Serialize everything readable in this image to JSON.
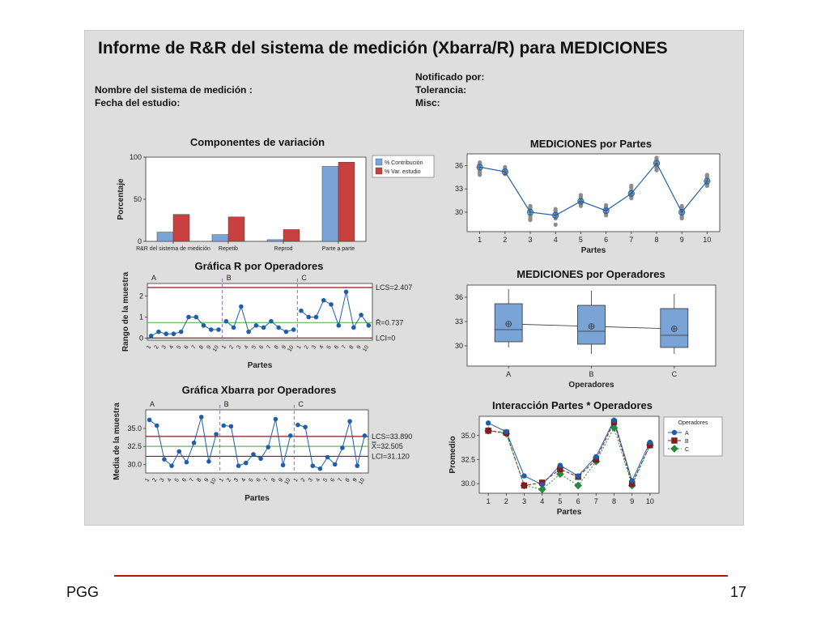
{
  "report": {
    "title": "Informe de R&R del sistema de medición  (Xbarra/R) para MEDICIONES",
    "system_label": "Nombre del sistema de medición :",
    "date_label": "Fecha del estudio:",
    "notified_label": "Notificado por:",
    "tolerance_label": "Tolerancia:",
    "misc_label": "Misc:"
  },
  "footer": {
    "left": "PGG",
    "page": "17"
  },
  "colors": {
    "blue": "#7aa3d6",
    "red": "#c8403f",
    "line": "#1f5ea8",
    "dark_red": "#8b1a1a",
    "green": "#62b562",
    "grey": "#8c8c8c",
    "green_marker": "#1f8f3a"
  },
  "chart_data": [
    {
      "id": "componentes",
      "type": "bar",
      "title": "Componentes de variación",
      "ylabel": "Porcentaje",
      "xlabel": "",
      "ylim": [
        0,
        100
      ],
      "yticks": [
        0,
        50,
        100
      ],
      "categories": [
        "R&R del sistema de medición",
        "Repetib",
        "Reprod",
        "Parte a parte"
      ],
      "series": [
        {
          "name": "% Contribución",
          "values": [
            11,
            8,
            2,
            89
          ]
        },
        {
          "name": "% Var. estudio",
          "values": [
            32,
            29,
            14,
            94
          ]
        }
      ],
      "legend": "right"
    },
    {
      "id": "partes",
      "type": "scatter",
      "title": "MEDICIONES por Partes",
      "xlabel": "Partes",
      "ylabel": "",
      "xlim": [
        0.5,
        10.5
      ],
      "ylim": [
        27.5,
        37.5
      ],
      "yticks": [
        30,
        33,
        36
      ],
      "x": [
        1,
        2,
        3,
        4,
        5,
        6,
        7,
        8,
        9,
        10
      ],
      "means": [
        35.8,
        35.2,
        30.0,
        29.6,
        31.4,
        30.2,
        32.4,
        36.3,
        30.0,
        34.0
      ],
      "points": [
        [
          35.0,
          35.6,
          36.2,
          35.4,
          36.0,
          35.2,
          34.8,
          36.4,
          35.8
        ],
        [
          35.0,
          35.4,
          35.6,
          34.9,
          35.5,
          35.2,
          35.0,
          35.8,
          35.3
        ],
        [
          29.0,
          30.2,
          30.6,
          29.4,
          30.0,
          29.2,
          30.8,
          30.4,
          29.6
        ],
        [
          28.4,
          29.8,
          30.2,
          29.6,
          30.0,
          29.4,
          29.8,
          30.4,
          29.2
        ],
        [
          30.8,
          31.6,
          32.0,
          31.2,
          31.8,
          30.9,
          31.4,
          32.2,
          31.0
        ],
        [
          29.6,
          30.4,
          30.8,
          30.0,
          30.6,
          29.8,
          30.2,
          30.9,
          29.9
        ],
        [
          31.8,
          32.6,
          33.2,
          32.2,
          32.8,
          31.9,
          32.4,
          33.4,
          32.0
        ],
        [
          35.4,
          36.4,
          37.0,
          36.0,
          36.6,
          35.8,
          36.2,
          36.8,
          35.6
        ],
        [
          29.2,
          30.0,
          30.6,
          29.8,
          30.4,
          29.6,
          30.2,
          30.8,
          29.4
        ],
        [
          33.4,
          34.2,
          34.6,
          33.8,
          34.4,
          33.6,
          34.0,
          34.8,
          33.5
        ]
      ]
    },
    {
      "id": "rchart",
      "type": "line",
      "title": "Gráfica R por Operadores",
      "xlabel": "Partes",
      "ylabel": "Rango de la muestra",
      "ylim": [
        -0.1,
        2.6
      ],
      "yticks": [
        0,
        1,
        2
      ],
      "operators": [
        "A",
        "B",
        "C"
      ],
      "x": [
        "1",
        "2",
        "3",
        "4",
        "5",
        "6",
        "7",
        "8",
        "9",
        "10"
      ],
      "values": [
        [
          0.1,
          0.3,
          0.2,
          0.2,
          0.3,
          1.0,
          1.0,
          0.6,
          0.4,
          0.4
        ],
        [
          0.8,
          0.5,
          1.5,
          0.3,
          0.6,
          0.5,
          0.8,
          0.5,
          0.3,
          0.4
        ],
        [
          1.3,
          1.0,
          1.0,
          1.8,
          1.6,
          0.6,
          2.2,
          0.5,
          1.1,
          0.6
        ]
      ],
      "ucl": 2.407,
      "center": 0.737,
      "lcl": 0,
      "ucl_label": "LCS=2.407",
      "center_label": "R̄=0.737",
      "lcl_label": "LCI=0"
    },
    {
      "id": "xbarchart",
      "type": "line",
      "title": "Gráfica Xbarra por Operadores",
      "xlabel": "Partes",
      "ylabel": "Media de la muestra",
      "ylim": [
        28.8,
        37.6
      ],
      "yticks": [
        30.0,
        32.5,
        35.0
      ],
      "ytick_labels": [
        "30.0",
        "32.5",
        "35.0"
      ],
      "operators": [
        "A",
        "B",
        "C"
      ],
      "x": [
        "1",
        "2",
        "3",
        "4",
        "5",
        "6",
        "7",
        "8",
        "9",
        "10"
      ],
      "values": [
        [
          36.2,
          35.4,
          30.7,
          29.8,
          31.8,
          30.3,
          33.0,
          36.6,
          30.4,
          34.2
        ],
        [
          35.4,
          35.3,
          29.8,
          30.2,
          31.4,
          30.8,
          32.4,
          36.3,
          29.9,
          34.0
        ],
        [
          35.5,
          35.2,
          29.8,
          29.4,
          31.0,
          30.0,
          32.3,
          36.0,
          29.8,
          34.0
        ]
      ],
      "ucl": 33.89,
      "center": 32.505,
      "lcl": 31.12,
      "ucl_label": "LCS=33.890",
      "center_label": "X̿=32.505",
      "lcl_label": "LCI=31.120"
    },
    {
      "id": "operadores",
      "type": "box",
      "title": "MEDICIONES por Operadores",
      "xlabel": "Operadores",
      "ylabel": "",
      "ylim": [
        27.5,
        37.5
      ],
      "yticks": [
        30,
        33,
        36
      ],
      "categories": [
        "A",
        "B",
        "C"
      ],
      "boxes": [
        {
          "min": 29.8,
          "q1": 30.5,
          "median": 32.0,
          "q3": 35.2,
          "max": 37.0,
          "mean": 32.7
        },
        {
          "min": 29.0,
          "q1": 30.2,
          "median": 31.8,
          "q3": 35.0,
          "max": 36.8,
          "mean": 32.4
        },
        {
          "min": 29.0,
          "q1": 29.8,
          "median": 31.3,
          "q3": 34.6,
          "max": 36.4,
          "mean": 32.1
        }
      ]
    },
    {
      "id": "interaccion",
      "type": "line",
      "title": "Interacción Partes * Operadores",
      "xlabel": "Partes",
      "ylabel": "Promedio",
      "ylim": [
        29.0,
        37.0
      ],
      "yticks": [
        30.0,
        32.5,
        35.0
      ],
      "ytick_labels": [
        "30.0",
        "32.5",
        "35.0"
      ],
      "x": [
        "1",
        "2",
        "3",
        "4",
        "5",
        "6",
        "7",
        "8",
        "9",
        "10"
      ],
      "legend_title": "Operadores",
      "series": [
        {
          "name": "A",
          "values": [
            36.3,
            35.4,
            30.8,
            29.9,
            31.9,
            30.8,
            32.8,
            36.6,
            30.3,
            34.3
          ]
        },
        {
          "name": "B",
          "values": [
            35.5,
            35.3,
            29.8,
            30.1,
            31.5,
            30.7,
            32.5,
            36.4,
            30.0,
            34.0
          ]
        },
        {
          "name": "C",
          "values": [
            35.5,
            35.2,
            29.8,
            29.4,
            31.0,
            29.8,
            32.3,
            35.8,
            29.8,
            34.0
          ]
        }
      ]
    }
  ]
}
